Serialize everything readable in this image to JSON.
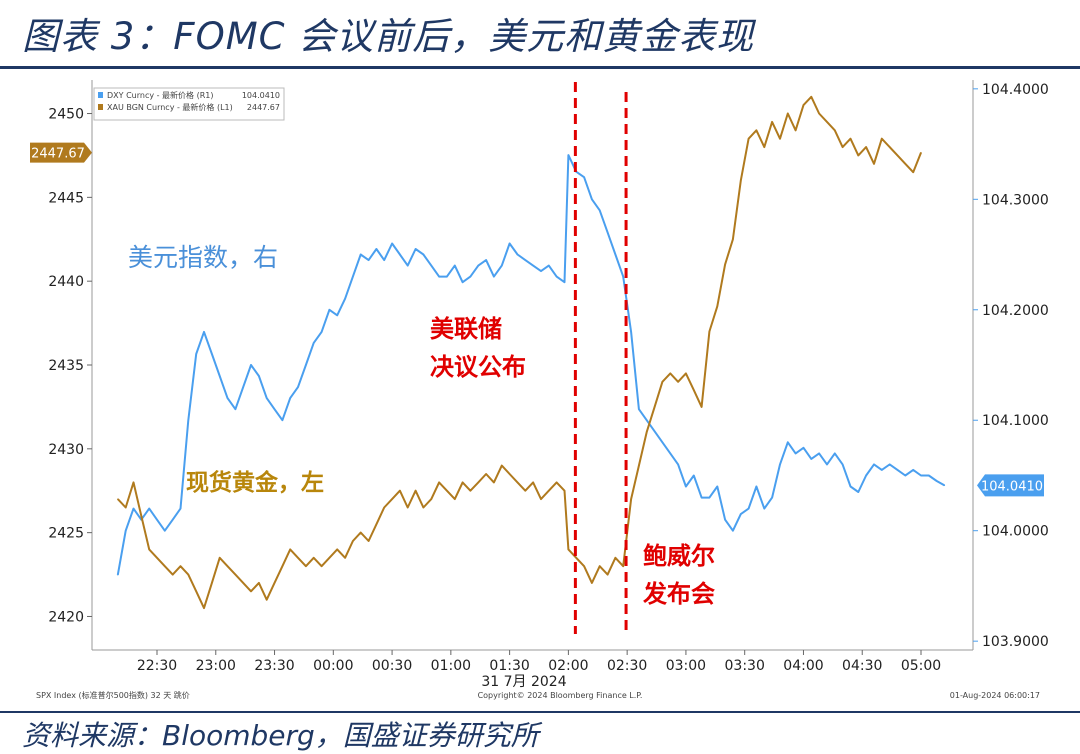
{
  "header": {
    "title": "图表 3：FOMC 会议前后，美元和黄金表现"
  },
  "footer": {
    "source": "资料来源：Bloomberg，国盛证券研究所"
  },
  "chart_data": {
    "type": "line",
    "date_label": "31 7月 2024",
    "x_ticks": [
      "22:30",
      "23:00",
      "23:30",
      "00:00",
      "00:30",
      "01:00",
      "01:30",
      "02:00",
      "02:30",
      "03:00",
      "03:30",
      "04:00",
      "04:30",
      "05:00"
    ],
    "left_axis": {
      "ticks": [
        "2420",
        "2425",
        "2430",
        "2435",
        "2440",
        "2445",
        "2450"
      ],
      "range": [
        2418,
        2452
      ]
    },
    "right_axis": {
      "ticks": [
        "103.9000",
        "104.0000",
        "104.1000",
        "104.2000",
        "104.3000",
        "104.4000"
      ],
      "range": [
        103.892,
        104.408
      ]
    },
    "last_left_label": "2447.67",
    "last_right_label": "104.0410",
    "legend": [
      {
        "text": "DXY Curncy - 最新价格 (R1)",
        "value": "104.0410",
        "color": "#4a9fef"
      },
      {
        "text": "XAU BGN Curncy - 最新价格 (L1)",
        "value": "2447.67",
        "color": "#b07a1e"
      }
    ],
    "annotations": {
      "dxy": "美元指数，右",
      "gold": "现货黄金，左",
      "fomc": [
        "美联储",
        "决议公布"
      ],
      "powell": [
        "鲍威尔",
        "发布会"
      ]
    },
    "footnote_left": "SPX Index (标准普尔500指数) 32 天 跳价",
    "footnote_mid": "Copyright© 2024 Bloomberg Finance L.P.",
    "footnote_right": "01-Aug-2024 06:00:17",
    "series": [
      {
        "name": "DXY Curncy",
        "axis": "right",
        "color": "#4a9fef",
        "points": [
          [
            "22:10",
            103.96
          ],
          [
            "22:14",
            104.0
          ],
          [
            "22:18",
            104.02
          ],
          [
            "22:22",
            104.01
          ],
          [
            "22:26",
            104.02
          ],
          [
            "22:30",
            104.01
          ],
          [
            "22:34",
            104.0
          ],
          [
            "22:38",
            104.01
          ],
          [
            "22:42",
            104.02
          ],
          [
            "22:46",
            104.1
          ],
          [
            "22:50",
            104.16
          ],
          [
            "22:54",
            104.18
          ],
          [
            "22:58",
            104.16
          ],
          [
            "23:02",
            104.14
          ],
          [
            "23:06",
            104.12
          ],
          [
            "23:10",
            104.11
          ],
          [
            "23:14",
            104.13
          ],
          [
            "23:18",
            104.15
          ],
          [
            "23:22",
            104.14
          ],
          [
            "23:26",
            104.12
          ],
          [
            "23:30",
            104.11
          ],
          [
            "23:34",
            104.1
          ],
          [
            "23:38",
            104.12
          ],
          [
            "23:42",
            104.13
          ],
          [
            "23:46",
            104.15
          ],
          [
            "23:50",
            104.17
          ],
          [
            "23:54",
            104.18
          ],
          [
            "23:58",
            104.2
          ],
          [
            "00:02",
            104.195
          ],
          [
            "00:06",
            104.21
          ],
          [
            "00:10",
            104.23
          ],
          [
            "00:14",
            104.25
          ],
          [
            "00:18",
            104.245
          ],
          [
            "00:22",
            104.255
          ],
          [
            "00:26",
            104.245
          ],
          [
            "00:30",
            104.26
          ],
          [
            "00:34",
            104.25
          ],
          [
            "00:38",
            104.24
          ],
          [
            "00:42",
            104.255
          ],
          [
            "00:46",
            104.25
          ],
          [
            "00:50",
            104.24
          ],
          [
            "00:54",
            104.23
          ],
          [
            "00:58",
            104.23
          ],
          [
            "01:02",
            104.24
          ],
          [
            "01:06",
            104.225
          ],
          [
            "01:10",
            104.23
          ],
          [
            "01:14",
            104.24
          ],
          [
            "01:18",
            104.245
          ],
          [
            "01:22",
            104.23
          ],
          [
            "01:26",
            104.24
          ],
          [
            "01:30",
            104.26
          ],
          [
            "01:34",
            104.25
          ],
          [
            "01:38",
            104.245
          ],
          [
            "01:42",
            104.24
          ],
          [
            "01:46",
            104.235
          ],
          [
            "01:50",
            104.24
          ],
          [
            "01:54",
            104.23
          ],
          [
            "01:58",
            104.225
          ],
          [
            "02:00",
            104.34
          ],
          [
            "02:04",
            104.325
          ],
          [
            "02:08",
            104.32
          ],
          [
            "02:12",
            104.3
          ],
          [
            "02:16",
            104.29
          ],
          [
            "02:20",
            104.27
          ],
          [
            "02:24",
            104.25
          ],
          [
            "02:28",
            104.23
          ],
          [
            "02:32",
            104.18
          ],
          [
            "02:36",
            104.11
          ],
          [
            "02:40",
            104.1
          ],
          [
            "02:44",
            104.09
          ],
          [
            "02:48",
            104.08
          ],
          [
            "02:52",
            104.07
          ],
          [
            "02:56",
            104.06
          ],
          [
            "03:00",
            104.04
          ],
          [
            "03:04",
            104.05
          ],
          [
            "03:08",
            104.03
          ],
          [
            "03:12",
            104.03
          ],
          [
            "03:16",
            104.04
          ],
          [
            "03:20",
            104.01
          ],
          [
            "03:24",
            104.0
          ],
          [
            "03:28",
            104.015
          ],
          [
            "03:32",
            104.02
          ],
          [
            "03:36",
            104.04
          ],
          [
            "03:40",
            104.02
          ],
          [
            "03:44",
            104.03
          ],
          [
            "03:48",
            104.06
          ],
          [
            "03:52",
            104.08
          ],
          [
            "03:56",
            104.07
          ],
          [
            "04:00",
            104.075
          ],
          [
            "04:04",
            104.065
          ],
          [
            "04:08",
            104.07
          ],
          [
            "04:12",
            104.06
          ],
          [
            "04:16",
            104.07
          ],
          [
            "04:20",
            104.06
          ],
          [
            "04:24",
            104.04
          ],
          [
            "04:28",
            104.035
          ],
          [
            "04:32",
            104.05
          ],
          [
            "04:36",
            104.06
          ],
          [
            "04:40",
            104.055
          ],
          [
            "04:44",
            104.06
          ],
          [
            "04:48",
            104.055
          ],
          [
            "04:52",
            104.05
          ],
          [
            "04:56",
            104.055
          ],
          [
            "05:00",
            104.05
          ],
          [
            "05:04",
            104.05
          ],
          [
            "05:08",
            104.045
          ],
          [
            "05:12",
            104.041
          ]
        ]
      },
      {
        "name": "XAU BGN Curncy",
        "axis": "left",
        "color": "#b07a1e",
        "points": [
          [
            "22:10",
            2427.0
          ],
          [
            "22:14",
            2426.5
          ],
          [
            "22:18",
            2428.0
          ],
          [
            "22:22",
            2426.0
          ],
          [
            "22:26",
            2424.0
          ],
          [
            "22:30",
            2423.5
          ],
          [
            "22:34",
            2423.0
          ],
          [
            "22:38",
            2422.5
          ],
          [
            "22:42",
            2423.0
          ],
          [
            "22:46",
            2422.5
          ],
          [
            "22:50",
            2421.5
          ],
          [
            "22:54",
            2420.5
          ],
          [
            "22:58",
            2422.0
          ],
          [
            "23:02",
            2423.5
          ],
          [
            "23:06",
            2423.0
          ],
          [
            "23:10",
            2422.5
          ],
          [
            "23:14",
            2422.0
          ],
          [
            "23:18",
            2421.5
          ],
          [
            "23:22",
            2422.0
          ],
          [
            "23:26",
            2421.0
          ],
          [
            "23:30",
            2422.0
          ],
          [
            "23:34",
            2423.0
          ],
          [
            "23:38",
            2424.0
          ],
          [
            "23:42",
            2423.5
          ],
          [
            "23:46",
            2423.0
          ],
          [
            "23:50",
            2423.5
          ],
          [
            "23:54",
            2423.0
          ],
          [
            "23:58",
            2423.5
          ],
          [
            "00:02",
            2424.0
          ],
          [
            "00:06",
            2423.5
          ],
          [
            "00:10",
            2424.5
          ],
          [
            "00:14",
            2425.0
          ],
          [
            "00:18",
            2424.5
          ],
          [
            "00:22",
            2425.5
          ],
          [
            "00:26",
            2426.5
          ],
          [
            "00:30",
            2427.0
          ],
          [
            "00:34",
            2427.5
          ],
          [
            "00:38",
            2426.5
          ],
          [
            "00:42",
            2427.5
          ],
          [
            "00:46",
            2426.5
          ],
          [
            "00:50",
            2427.0
          ],
          [
            "00:54",
            2428.0
          ],
          [
            "00:58",
            2427.5
          ],
          [
            "01:02",
            2427.0
          ],
          [
            "01:06",
            2428.0
          ],
          [
            "01:10",
            2427.5
          ],
          [
            "01:14",
            2428.0
          ],
          [
            "01:18",
            2428.5
          ],
          [
            "01:22",
            2428.0
          ],
          [
            "01:26",
            2429.0
          ],
          [
            "01:30",
            2428.5
          ],
          [
            "01:34",
            2428.0
          ],
          [
            "01:38",
            2427.5
          ],
          [
            "01:42",
            2428.0
          ],
          [
            "01:46",
            2427.0
          ],
          [
            "01:50",
            2427.5
          ],
          [
            "01:54",
            2428.0
          ],
          [
            "01:58",
            2427.5
          ],
          [
            "02:00",
            2424.0
          ],
          [
            "02:04",
            2423.5
          ],
          [
            "02:08",
            2423.0
          ],
          [
            "02:12",
            2422.0
          ],
          [
            "02:16",
            2423.0
          ],
          [
            "02:20",
            2422.5
          ],
          [
            "02:24",
            2423.5
          ],
          [
            "02:28",
            2423.0
          ],
          [
            "02:32",
            2427.0
          ],
          [
            "02:36",
            2429.0
          ],
          [
            "02:40",
            2431.0
          ],
          [
            "02:44",
            2432.5
          ],
          [
            "02:48",
            2434.0
          ],
          [
            "02:52",
            2434.5
          ],
          [
            "02:56",
            2434.0
          ],
          [
            "03:00",
            2434.5
          ],
          [
            "03:04",
            2433.5
          ],
          [
            "03:08",
            2432.5
          ],
          [
            "03:12",
            2437.0
          ],
          [
            "03:16",
            2438.5
          ],
          [
            "03:20",
            2441.0
          ],
          [
            "03:24",
            2442.5
          ],
          [
            "03:28",
            2446.0
          ],
          [
            "03:32",
            2448.5
          ],
          [
            "03:36",
            2449.0
          ],
          [
            "03:40",
            2448.0
          ],
          [
            "03:44",
            2449.5
          ],
          [
            "03:48",
            2448.5
          ],
          [
            "03:52",
            2450.0
          ],
          [
            "03:56",
            2449.0
          ],
          [
            "04:00",
            2450.5
          ],
          [
            "04:04",
            2451.0
          ],
          [
            "04:08",
            2450.0
          ],
          [
            "04:12",
            2449.5
          ],
          [
            "04:16",
            2449.0
          ],
          [
            "04:20",
            2448.0
          ],
          [
            "04:24",
            2448.5
          ],
          [
            "04:28",
            2447.5
          ],
          [
            "04:32",
            2448.0
          ],
          [
            "04:36",
            2447.0
          ],
          [
            "04:40",
            2448.5
          ],
          [
            "04:44",
            2448.0
          ],
          [
            "04:48",
            2447.5
          ],
          [
            "04:52",
            2447.0
          ],
          [
            "04:56",
            2446.5
          ],
          [
            "05:00",
            2447.67
          ]
        ]
      }
    ]
  }
}
